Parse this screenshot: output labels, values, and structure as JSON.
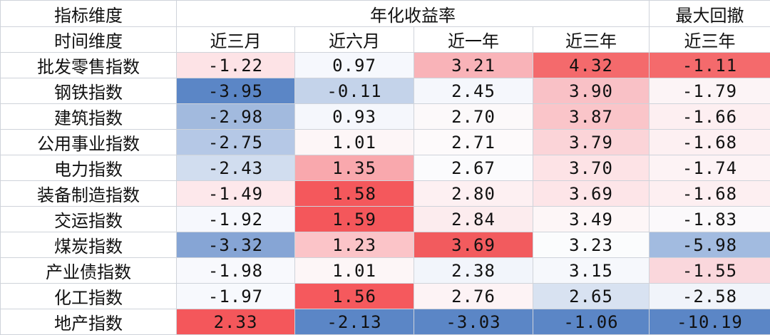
{
  "header": {
    "group_label": "指标维度",
    "return_group": "年化收益率",
    "drawdown_group": "最大回撤",
    "period_label": "时间维度",
    "periods": [
      "近三月",
      "近六月",
      "近一年",
      "近三年",
      "近三年"
    ]
  },
  "rows": [
    {
      "name": "批发零售指数",
      "values": [
        "-1.22",
        "0.97",
        "3.21",
        "4.32",
        "-1.11"
      ],
      "colors": [
        "#fde3e6",
        "#f6f8fd",
        "#f9b3b8",
        "#f46a6c",
        "#f46a6c"
      ]
    },
    {
      "name": "钢铁指数",
      "values": [
        "-3.95",
        "-0.11",
        "2.45",
        "3.90",
        "-1.79"
      ],
      "colors": [
        "#5b86c6",
        "#c4d3ea",
        "#f5f7fc",
        "#f9c1c6",
        "#fcf4f6"
      ]
    },
    {
      "name": "建筑指数",
      "values": [
        "-2.98",
        "0.93",
        "2.70",
        "3.87",
        "-1.66"
      ],
      "colors": [
        "#a2bade",
        "#f5f7fc",
        "#fcf9fa",
        "#fac5c9",
        "#fdeff1"
      ]
    },
    {
      "name": "公用事业指数",
      "values": [
        "-2.75",
        "1.01",
        "2.71",
        "3.79",
        "-1.68"
      ],
      "colors": [
        "#b5c8e6",
        "#fdf6f7",
        "#fdfafb",
        "#fbd4d8",
        "#fdf0f2"
      ]
    },
    {
      "name": "电力指数",
      "values": [
        "-2.43",
        "1.35",
        "2.67",
        "3.70",
        "-1.74"
      ],
      "colors": [
        "#d1ddef",
        "#f9a8ad",
        "#fbfbfd",
        "#fde3e6",
        "#fdf3f5"
      ]
    },
    {
      "name": "装备制造指数",
      "values": [
        "-1.49",
        "1.58",
        "2.80",
        "3.69",
        "-1.68"
      ],
      "colors": [
        "#fde8eb",
        "#f4585c",
        "#fdf0f2",
        "#fde5e8",
        "#fdeff1"
      ]
    },
    {
      "name": "交运指数",
      "values": [
        "-1.92",
        "1.59",
        "2.84",
        "3.49",
        "-1.83"
      ],
      "colors": [
        "#f6f8fd",
        "#f4575b",
        "#fcecee",
        "#fdf6f7",
        "#fbf9fb"
      ]
    },
    {
      "name": "煤炭指数",
      "values": [
        "-3.32",
        "1.23",
        "3.69",
        "3.23",
        "-5.98"
      ],
      "colors": [
        "#86a5d5",
        "#fbc4c8",
        "#f25b5e",
        "#fbfcfd",
        "#a2bbe0"
      ]
    },
    {
      "name": "产业债指数",
      "values": [
        "-1.98",
        "1.01",
        "2.38",
        "3.15",
        "-1.55"
      ],
      "colors": [
        "#f8f9fd",
        "#fdf6f7",
        "#f2f5fb",
        "#f6f8fc",
        "#fad7dc"
      ]
    },
    {
      "name": "化工指数",
      "values": [
        "-1.97",
        "1.56",
        "2.76",
        "2.65",
        "-2.58"
      ],
      "colors": [
        "#f7f9fd",
        "#f5595d",
        "#fdf3f5",
        "#d8e2f1",
        "#f1f4fa"
      ]
    },
    {
      "name": "地产指数",
      "values": [
        "2.33",
        "-2.13",
        "-3.03",
        "-1.06",
        "-10.19"
      ],
      "colors": [
        "#f4575b",
        "#5b86c6",
        "#5b86c6",
        "#5b86c6",
        "#5b86c6"
      ]
    }
  ]
}
